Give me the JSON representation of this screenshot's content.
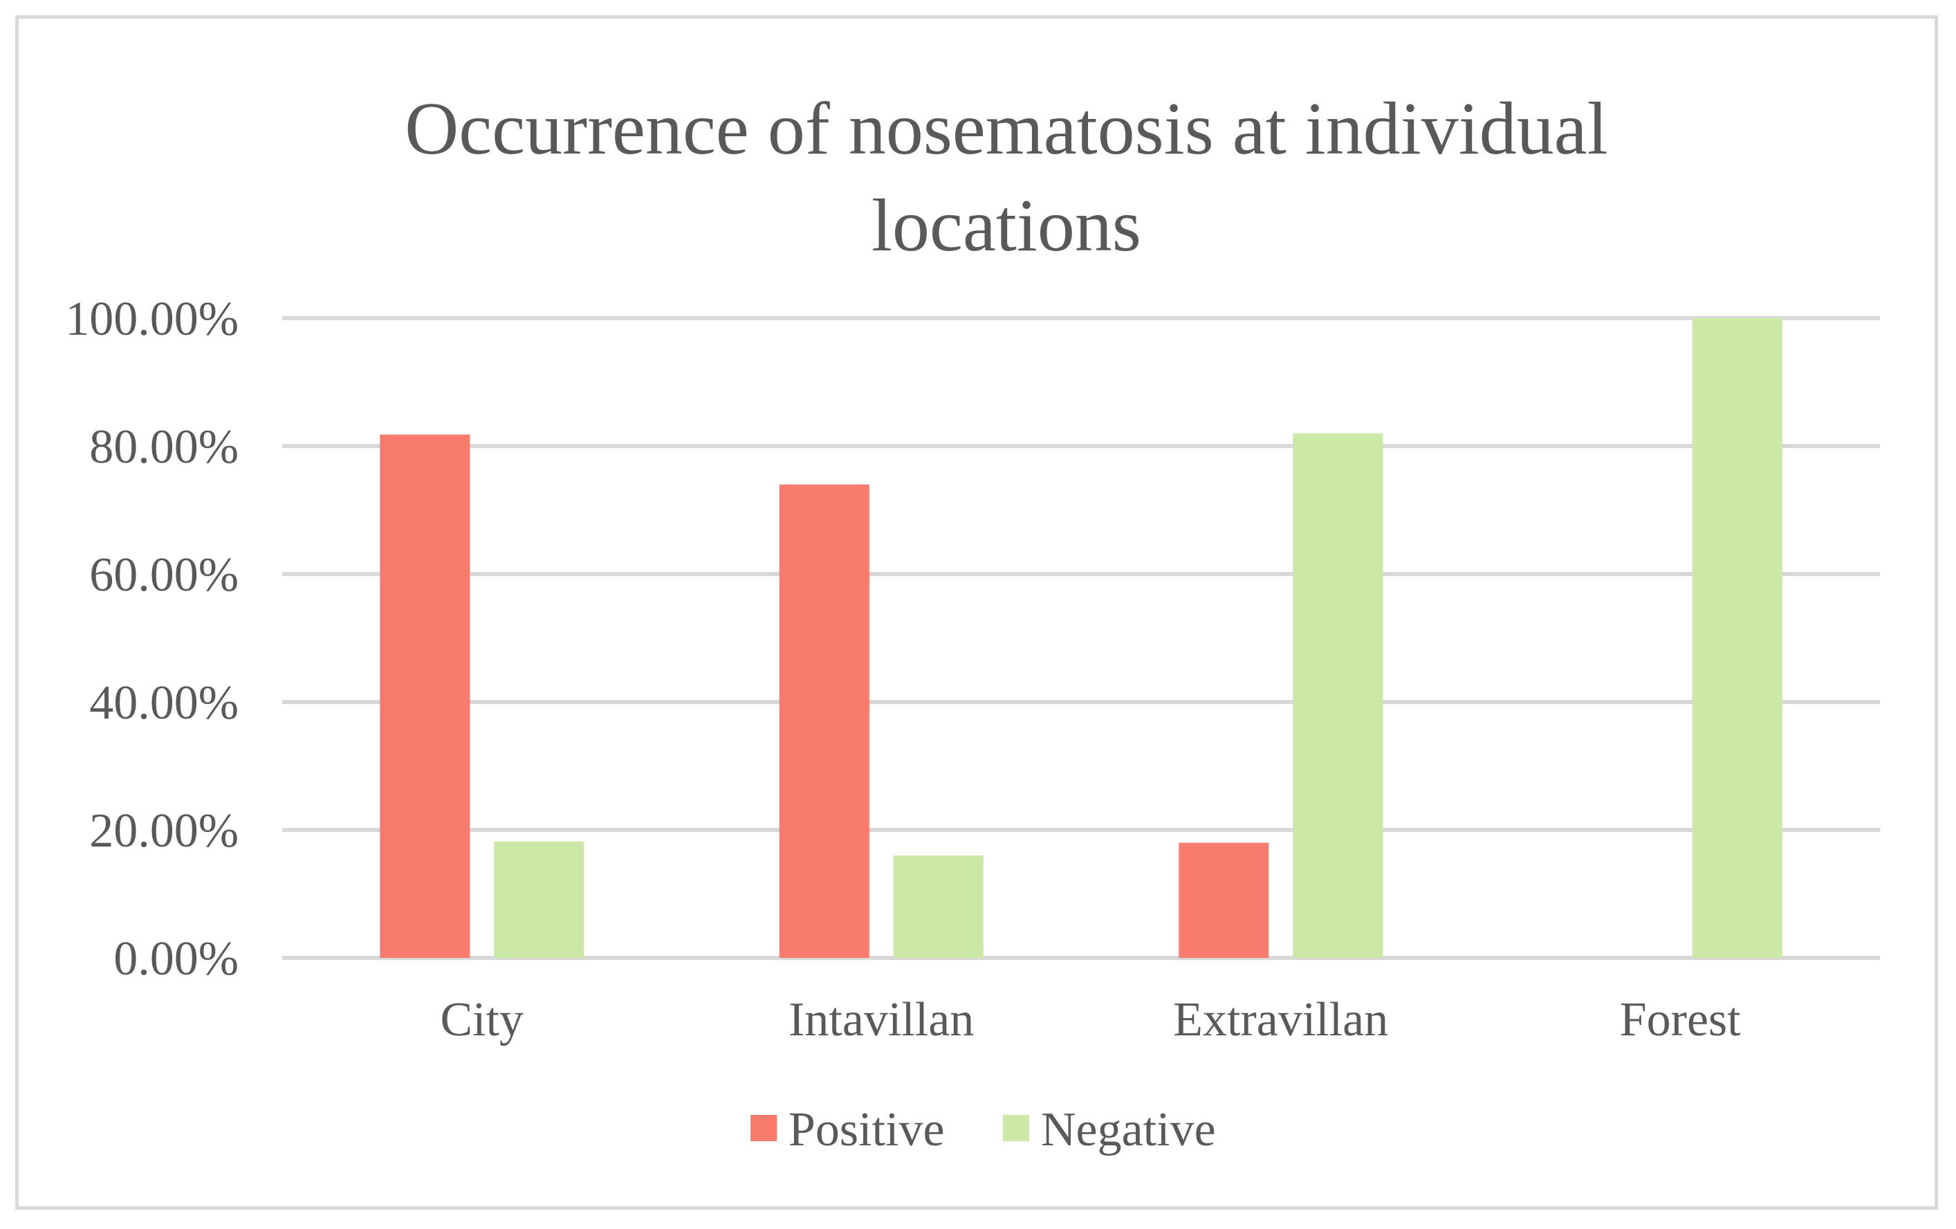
{
  "chart_data": {
    "type": "bar",
    "title_lines": [
      "Occurrence of nosematosis at individual",
      "locations"
    ],
    "categories": [
      "City",
      "Intavillan",
      "Extravillan",
      "Forest"
    ],
    "series": [
      {
        "name": "Positive",
        "color": "#f87b6d",
        "values": [
          81.8,
          74.0,
          18.0,
          0.0
        ]
      },
      {
        "name": "Negative",
        "color": "#cce8a6",
        "values": [
          18.2,
          16.0,
          82.0,
          100.0
        ]
      }
    ],
    "y_ticks": [
      "0.00%",
      "20.00%",
      "40.00%",
      "60.00%",
      "80.00%",
      "100.00%"
    ],
    "ylim": [
      0,
      100
    ],
    "grid": true,
    "legend_position": "bottom",
    "colors": {
      "gridline": "#d9d9d9",
      "text": "#595959",
      "border": "#d9d9d9"
    }
  }
}
